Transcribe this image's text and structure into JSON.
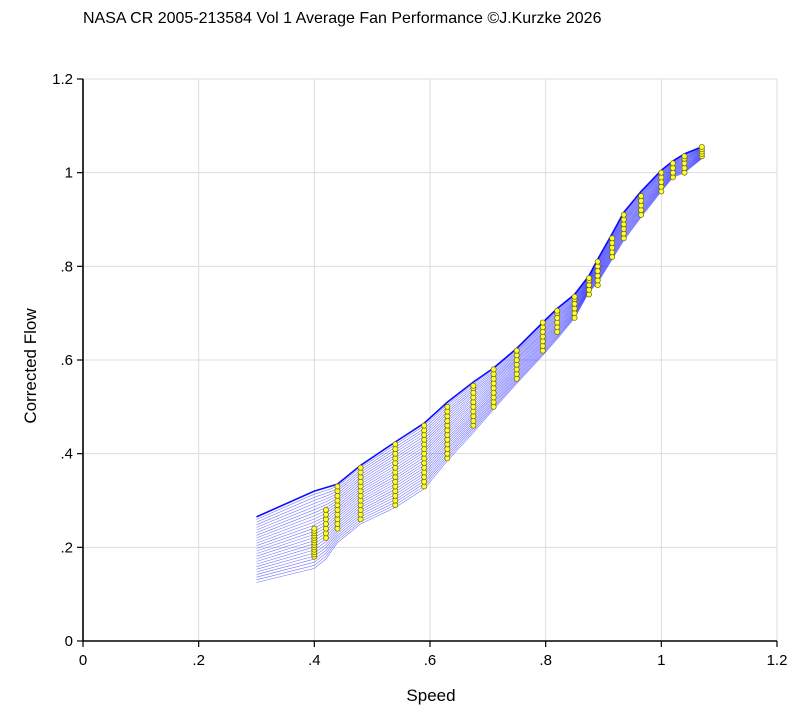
{
  "chart_data": {
    "type": "line",
    "title": "NASA CR 2005-213584 Vol 1 Average Fan Performance ©J.Kurzke 2026",
    "xlabel": "Speed",
    "ylabel": "Corrected Flow",
    "xlim": [
      0,
      1.2
    ],
    "ylim": [
      0,
      1.2
    ],
    "xticks": [
      "0",
      ".2",
      ".4",
      ".6",
      ".8",
      "1",
      "1.2"
    ],
    "yticks": [
      "0",
      ".2",
      ".4",
      ".6",
      ".8",
      "1",
      "1.2"
    ],
    "grid": true,
    "line_color": "#0000ff",
    "marker_color": "#ffff33",
    "envelope": {
      "upper": [
        [
          0.3,
          0.265
        ],
        [
          0.4,
          0.32
        ],
        [
          0.44,
          0.335
        ],
        [
          0.48,
          0.375
        ],
        [
          0.54,
          0.425
        ],
        [
          0.59,
          0.465
        ],
        [
          0.63,
          0.51
        ],
        [
          0.675,
          0.553
        ],
        [
          0.71,
          0.583
        ],
        [
          0.75,
          0.625
        ],
        [
          0.795,
          0.68
        ],
        [
          0.82,
          0.71
        ],
        [
          0.85,
          0.74
        ],
        [
          0.875,
          0.78
        ],
        [
          0.89,
          0.815
        ],
        [
          0.915,
          0.87
        ],
        [
          0.935,
          0.915
        ],
        [
          0.965,
          0.96
        ],
        [
          1.0,
          1.005
        ],
        [
          1.02,
          1.025
        ],
        [
          1.04,
          1.04
        ],
        [
          1.07,
          1.055
        ]
      ],
      "lower": [
        [
          0.3,
          0.125
        ],
        [
          0.4,
          0.155
        ],
        [
          0.42,
          0.175
        ],
        [
          0.44,
          0.21
        ],
        [
          0.48,
          0.25
        ],
        [
          0.54,
          0.285
        ],
        [
          0.59,
          0.325
        ],
        [
          0.63,
          0.385
        ],
        [
          0.675,
          0.445
        ],
        [
          0.71,
          0.495
        ],
        [
          0.75,
          0.55
        ],
        [
          0.795,
          0.61
        ],
        [
          0.82,
          0.645
        ],
        [
          0.85,
          0.69
        ],
        [
          0.875,
          0.745
        ],
        [
          0.89,
          0.765
        ],
        [
          0.915,
          0.815
        ],
        [
          0.935,
          0.855
        ],
        [
          0.965,
          0.905
        ],
        [
          1.0,
          0.96
        ],
        [
          1.02,
          0.99
        ],
        [
          1.04,
          1.0
        ],
        [
          1.07,
          1.03
        ]
      ]
    },
    "measured_points": [
      {
        "speed": 0.4,
        "flow": [
          0.18,
          0.185,
          0.19,
          0.195,
          0.2,
          0.205,
          0.21,
          0.215,
          0.22,
          0.225,
          0.23,
          0.235,
          0.24
        ]
      },
      {
        "speed": 0.42,
        "flow": [
          0.22,
          0.23,
          0.24,
          0.25,
          0.26,
          0.27,
          0.28
        ]
      },
      {
        "speed": 0.44,
        "flow": [
          0.24,
          0.25,
          0.26,
          0.27,
          0.28,
          0.29,
          0.3,
          0.31,
          0.32,
          0.33
        ]
      },
      {
        "speed": 0.48,
        "flow": [
          0.26,
          0.27,
          0.28,
          0.29,
          0.3,
          0.31,
          0.32,
          0.33,
          0.34,
          0.35,
          0.36,
          0.37
        ]
      },
      {
        "speed": 0.54,
        "flow": [
          0.29,
          0.3,
          0.31,
          0.32,
          0.33,
          0.34,
          0.35,
          0.36,
          0.37,
          0.38,
          0.39,
          0.4,
          0.41,
          0.42
        ]
      },
      {
        "speed": 0.59,
        "flow": [
          0.33,
          0.34,
          0.35,
          0.36,
          0.37,
          0.38,
          0.39,
          0.4,
          0.41,
          0.42,
          0.43,
          0.44,
          0.45,
          0.46
        ]
      },
      {
        "speed": 0.63,
        "flow": [
          0.39,
          0.4,
          0.41,
          0.42,
          0.43,
          0.44,
          0.45,
          0.46,
          0.47,
          0.48,
          0.49,
          0.5
        ]
      },
      {
        "speed": 0.675,
        "flow": [
          0.46,
          0.47,
          0.48,
          0.49,
          0.5,
          0.51,
          0.52,
          0.53,
          0.54,
          0.545
        ]
      },
      {
        "speed": 0.71,
        "flow": [
          0.5,
          0.51,
          0.52,
          0.53,
          0.54,
          0.55,
          0.56,
          0.57,
          0.58
        ]
      },
      {
        "speed": 0.75,
        "flow": [
          0.56,
          0.57,
          0.58,
          0.59,
          0.6,
          0.61,
          0.62
        ]
      },
      {
        "speed": 0.795,
        "flow": [
          0.62,
          0.63,
          0.64,
          0.65,
          0.66,
          0.67,
          0.68
        ]
      },
      {
        "speed": 0.82,
        "flow": [
          0.66,
          0.67,
          0.68,
          0.69,
          0.7,
          0.705
        ]
      },
      {
        "speed": 0.85,
        "flow": [
          0.69,
          0.7,
          0.71,
          0.72,
          0.73,
          0.735
        ]
      },
      {
        "speed": 0.875,
        "flow": [
          0.74,
          0.75,
          0.76,
          0.77,
          0.775
        ]
      },
      {
        "speed": 0.89,
        "flow": [
          0.76,
          0.77,
          0.78,
          0.79,
          0.8,
          0.81
        ]
      },
      {
        "speed": 0.915,
        "flow": [
          0.82,
          0.83,
          0.84,
          0.85,
          0.86
        ]
      },
      {
        "speed": 0.935,
        "flow": [
          0.86,
          0.87,
          0.88,
          0.89,
          0.9,
          0.91
        ]
      },
      {
        "speed": 0.965,
        "flow": [
          0.91,
          0.92,
          0.93,
          0.94,
          0.95
        ]
      },
      {
        "speed": 1.0,
        "flow": [
          0.96,
          0.97,
          0.98,
          0.99,
          1.0
        ]
      },
      {
        "speed": 1.02,
        "flow": [
          0.99,
          1.0,
          1.01,
          1.02
        ]
      },
      {
        "speed": 1.04,
        "flow": [
          1.0,
          1.01,
          1.02,
          1.03,
          1.035
        ]
      },
      {
        "speed": 1.07,
        "flow": [
          1.035,
          1.04,
          1.045,
          1.05,
          1.055
        ]
      }
    ]
  }
}
